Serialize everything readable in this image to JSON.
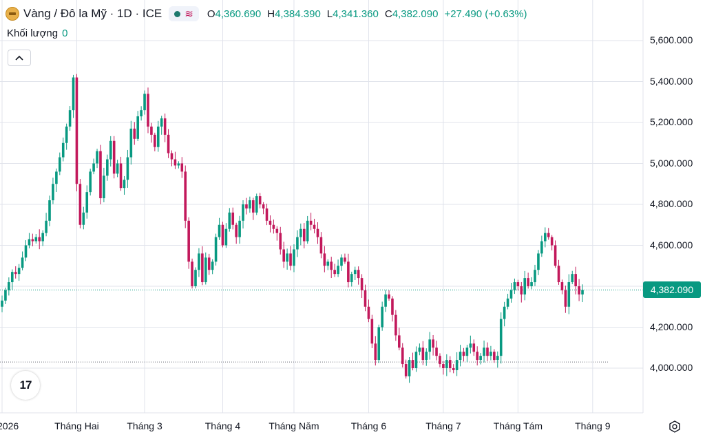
{
  "header": {
    "title": "Vàng / Đô la Mỹ · 1D · ICE",
    "ohlc": {
      "o_label": "O",
      "o_value": "4,360.690",
      "h_label": "H",
      "h_value": "4,384.390",
      "l_label": "L",
      "l_value": "4,341.360",
      "c_label": "C",
      "c_value": "4,382.090",
      "change": "+27.490 (+0.63%)"
    }
  },
  "volume": {
    "label": "Khối lượng",
    "value": "0"
  },
  "logo_text": "17",
  "price_tag": "4,382.090",
  "colors": {
    "up": "#089981",
    "down": "#c2185b",
    "grid": "#e0e3eb",
    "text": "#131722"
  },
  "icons": [
    "gold-symbol-icon",
    "status-dot-icon",
    "wave-icon",
    "chevron-up-icon",
    "tradingview-logo-icon",
    "settings-icon"
  ],
  "chart_data": {
    "type": "candlestick",
    "ylim": [
      3800000,
      5800000
    ],
    "y_ticks": [
      {
        "value": 4000000,
        "label": "4,000.000"
      },
      {
        "value": 4200000,
        "label": "4,200.000"
      },
      {
        "value": 4400000,
        "label": "4,400.000"
      },
      {
        "value": 4600000,
        "label": "4,600.000"
      },
      {
        "value": 4800000,
        "label": "4,800.000"
      },
      {
        "value": 5000000,
        "label": "5,000.000"
      },
      {
        "value": 5200000,
        "label": "5,200.000"
      },
      {
        "value": 5400000,
        "label": "5,400.000"
      },
      {
        "value": 5600000,
        "label": "5,600.000"
      }
    ],
    "x_ticks": [
      {
        "index": 0,
        "label": "2026"
      },
      {
        "index": 22,
        "label": "Tháng Hai"
      },
      {
        "index": 42,
        "label": "Tháng 3"
      },
      {
        "index": 65,
        "label": "Tháng 4"
      },
      {
        "index": 86,
        "label": "Tháng Năm"
      },
      {
        "index": 108,
        "label": "Tháng 6"
      },
      {
        "index": 130,
        "label": "Tháng 7"
      },
      {
        "index": 152,
        "label": "Tháng Tám"
      },
      {
        "index": 174,
        "label": "Tháng 9"
      }
    ],
    "last_price": 4382090,
    "reference_line": 4030000,
    "closes": [
      4330000,
      4380000,
      4420000,
      4470000,
      4460000,
      4490000,
      4540000,
      4600000,
      4630000,
      4620000,
      4640000,
      4620000,
      4660000,
      4720000,
      4820000,
      4900000,
      4960000,
      5030000,
      5100000,
      5180000,
      5260000,
      5420000,
      4900000,
      4700000,
      4760000,
      4860000,
      4960000,
      5000000,
      5060000,
      4830000,
      4940000,
      5020000,
      5110000,
      4950000,
      5000000,
      4880000,
      4920000,
      5030000,
      5170000,
      5120000,
      5230000,
      5260000,
      5340000,
      5180000,
      5140000,
      5080000,
      5180000,
      5220000,
      5140000,
      5050000,
      5020000,
      4990000,
      5000000,
      4960000,
      4720000,
      4520000,
      4400000,
      4480000,
      4560000,
      4420000,
      4540000,
      4480000,
      4520000,
      4640000,
      4700000,
      4600000,
      4680000,
      4760000,
      4700000,
      4640000,
      4720000,
      4800000,
      4780000,
      4820000,
      4760000,
      4840000,
      4800000,
      4780000,
      4720000,
      4700000,
      4680000,
      4660000,
      4580000,
      4520000,
      4560000,
      4500000,
      4580000,
      4640000,
      4680000,
      4620000,
      4720000,
      4700000,
      4680000,
      4640000,
      4560000,
      4500000,
      4520000,
      4480000,
      4460000,
      4500000,
      4540000,
      4520000,
      4420000,
      4460000,
      4480000,
      4440000,
      4380000,
      4300000,
      4240000,
      4120000,
      4040000,
      4200000,
      4300000,
      4360000,
      4340000,
      4260000,
      4160000,
      4100000,
      4020000,
      3960000,
      4040000,
      4000000,
      4080000,
      4100000,
      4040000,
      4080000,
      4140000,
      4100000,
      4060000,
      4020000,
      4000000,
      4040000,
      4000000,
      3990000,
      4040000,
      4080000,
      4060000,
      4100000,
      4120000,
      4080000,
      4040000,
      4060000,
      4100000,
      4060000,
      4080000,
      4040000,
      4060000,
      4240000,
      4300000,
      4340000,
      4380000,
      4420000,
      4400000,
      4360000,
      4440000,
      4400000,
      4420000,
      4480000,
      4560000,
      4620000,
      4660000,
      4640000,
      4600000,
      4500000,
      4420000,
      4380000,
      4300000,
      4420000,
      4460000,
      4400000,
      4360000,
      4382090
    ]
  }
}
